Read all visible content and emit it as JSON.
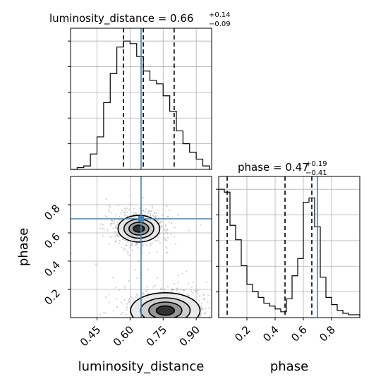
{
  "chart_data": {
    "type": "corner",
    "parameters": [
      "luminosity_distance",
      "phase"
    ],
    "truths": {
      "luminosity_distance": 0.65,
      "phase": 0.7
    },
    "panels": {
      "luminosity_distance_hist": {
        "title_text": "luminosity_distance = 0.66",
        "title_plus": "+0.14",
        "title_minus": "−0.09",
        "xlim": [
          0.33,
          0.97
        ],
        "quantiles": [
          0.57,
          0.66,
          0.8
        ],
        "bins": [
          0.33,
          0.36,
          0.39,
          0.42,
          0.45,
          0.48,
          0.51,
          0.54,
          0.57,
          0.6,
          0.63,
          0.66,
          0.69,
          0.72,
          0.75,
          0.78,
          0.81,
          0.84,
          0.87,
          0.9,
          0.93,
          0.96
        ],
        "counts": [
          0,
          2,
          4,
          18,
          38,
          78,
          112,
          143,
          150,
          147,
          132,
          115,
          104,
          100,
          86,
          68,
          45,
          30,
          20,
          12,
          4
        ]
      },
      "phase_hist": {
        "title_text": "phase = 0.47",
        "title_plus": "+0.19",
        "title_minus": "−0.41",
        "xlim": [
          0.0,
          1.0
        ],
        "quantiles": [
          0.06,
          0.47,
          0.66
        ],
        "bins": [
          0.0,
          0.04,
          0.08,
          0.12,
          0.16,
          0.2,
          0.24,
          0.28,
          0.32,
          0.36,
          0.4,
          0.44,
          0.48,
          0.52,
          0.56,
          0.6,
          0.64,
          0.68,
          0.72,
          0.76,
          0.8,
          0.84,
          0.88,
          0.92,
          0.96,
          1.0
        ],
        "counts": [
          178,
          174,
          128,
          108,
          72,
          46,
          36,
          28,
          20,
          16,
          12,
          8,
          26,
          58,
          82,
          160,
          166,
          126,
          56,
          28,
          18,
          10,
          6,
          4,
          4
        ]
      },
      "joint": {
        "xlim": [
          0.33,
          0.97
        ],
        "ylim": [
          0.0,
          1.0
        ],
        "x_ticks": [
          "0.45",
          "0.60",
          "0.75",
          "0.90"
        ],
        "x_tick_values": [
          0.45,
          0.6,
          0.75,
          0.9
        ],
        "y_ticks": [
          "0.2",
          "0.4",
          "0.6",
          "0.8"
        ],
        "y_tick_values": [
          0.2,
          0.4,
          0.6,
          0.8
        ],
        "modes": [
          {
            "x": 0.64,
            "y": 0.63,
            "sx": 0.045,
            "sy": 0.045
          },
          {
            "x": 0.76,
            "y": 0.05,
            "sx": 0.075,
            "sy": 0.06
          }
        ]
      }
    },
    "x_ticks_phase": [
      "0.2",
      "0.4",
      "0.6",
      "0.8"
    ],
    "x_tick_values_phase": [
      0.2,
      0.4,
      0.6,
      0.8
    ],
    "xlabel_left": "luminosity_distance",
    "xlabel_right": "phase",
    "ylabel": "phase",
    "grid": true
  }
}
